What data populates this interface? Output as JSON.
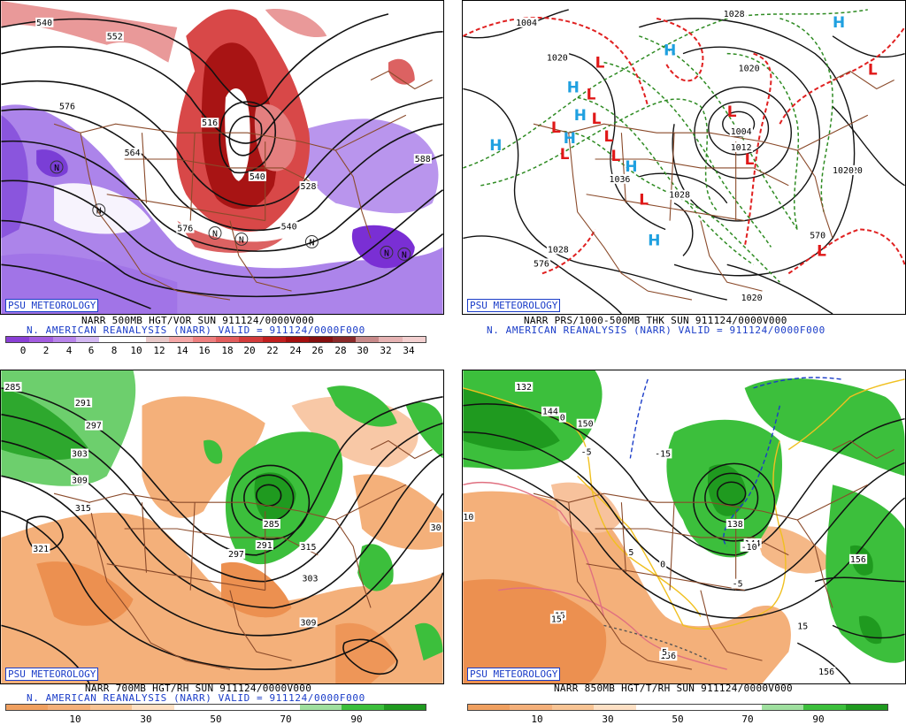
{
  "panels": [
    {
      "id": "vor500",
      "badge": "PSU METEOROLOGY",
      "line1": "NARR 500MB HGT/VOR SUN 911124/0000V000",
      "line2": "N. AMERICAN REANALYSIS (NARR) VALID = 911124/0000F000",
      "colorbar_ticks": [
        "0",
        "2",
        "4",
        "6",
        "8",
        "10",
        "12",
        "14",
        "16",
        "18",
        "20",
        "22",
        "24",
        "26",
        "28",
        "30",
        "32",
        "34"
      ],
      "colorbar_colors": [
        "#8a3fd6",
        "#a35ce0",
        "#b884ea",
        "#d3b8f2",
        "#ffffff",
        "#ffffff",
        "#e8c9c9",
        "#f4a7a7",
        "#ee7f7f",
        "#e25d5d",
        "#d33b3b",
        "#c01f1f",
        "#a40f0f",
        "#861010",
        "#8b2a2a",
        "#c88a8a",
        "#e6b3b3",
        "#f3d0d0"
      ],
      "contour_labels": [
        "540",
        "552",
        "576",
        "564",
        "516",
        "588",
        "540",
        "528",
        "576",
        "540"
      ],
      "symbols": [
        "N",
        "N",
        "N",
        "N",
        "N",
        "N",
        "N"
      ]
    },
    {
      "id": "prs1000",
      "badge": "PSU METEOROLOGY",
      "line1": "NARR PRS/1000-500MB THK SUN 911124/0000V000",
      "line2": "N. AMERICAN REANALYSIS (NARR) VALID = 911124/0000F000",
      "contour_labels": [
        "1004",
        "1028",
        "1020",
        "1020",
        "1004",
        "1012",
        "1020",
        "1036",
        "1028",
        "1020",
        "1028",
        "1020",
        "570",
        "576"
      ],
      "highs": [
        "H",
        "H",
        "H",
        "H",
        "H",
        "H",
        "H",
        "H"
      ],
      "lows": [
        "L",
        "L",
        "L",
        "L",
        "L",
        "L",
        "L",
        "L",
        "L",
        "L",
        "L",
        "L"
      ]
    },
    {
      "id": "rh700",
      "badge": "PSU METEOROLOGY",
      "line1": "NARR 700MB HGT/RH SUN 911124/0000V000",
      "line2": "N. AMERICAN REANALYSIS (NARR) VALID = 911124/0000F000",
      "colorbar_ticks": [
        "10",
        "30",
        "50",
        "70",
        "90"
      ],
      "colorbar_colors": [
        "#f0a060",
        "#f4b07a",
        "#f8c494",
        "#fde0c4",
        "#ffffff",
        "#ffffff",
        "#ffffff",
        "#9fe09f",
        "#3cbf3c",
        "#1f9a1f"
      ],
      "contour_labels": [
        "285",
        "291",
        "297",
        "303",
        "309",
        "315",
        "321",
        "285",
        "291",
        "297",
        "303",
        "309",
        "315",
        "30"
      ]
    },
    {
      "id": "t850",
      "badge": "PSU METEOROLOGY",
      "line1": "NARR 850MB HGT/T/RH SUN 911124/0000V000",
      "line2": "",
      "colorbar_ticks": [
        "10",
        "30",
        "50",
        "70",
        "90"
      ],
      "colorbar_colors": [
        "#f0a060",
        "#f4b07a",
        "#f8c494",
        "#fde0c4",
        "#ffffff",
        "#ffffff",
        "#ffffff",
        "#9fe09f",
        "#3cbf3c",
        "#1f9a1f"
      ],
      "contour_labels": [
        "132",
        "144",
        "150",
        "-5",
        "-15",
        "0",
        "10",
        "138",
        "144",
        "-10",
        "-5",
        "15",
        "15",
        "156",
        "156",
        "15",
        "5",
        "156",
        "5",
        "0"
      ]
    }
  ],
  "colors": {
    "caption_blue": "#1a3cc8",
    "border_brown": "#8a4a2a",
    "contour_black": "#111111",
    "thickness_green": "#2e8b22",
    "thickness_red": "#e02020",
    "high_blue": "#1fa0e0",
    "low_red": "#e01818"
  }
}
